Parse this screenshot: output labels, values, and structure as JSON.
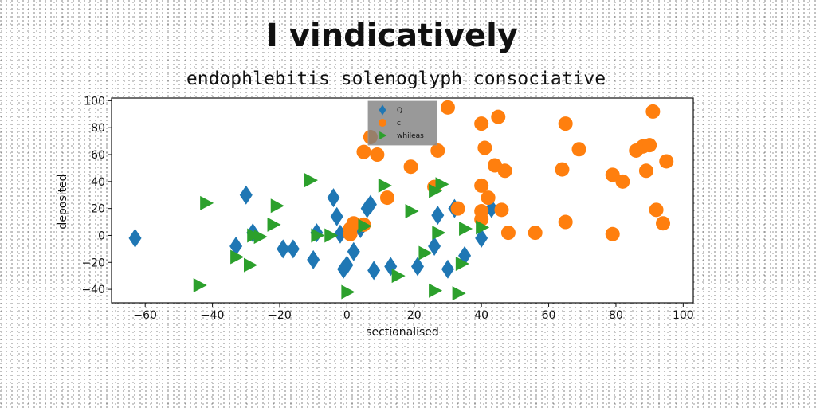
{
  "title": "I vindicatively",
  "subtitle": "endophlebitis solenoglyph consociative",
  "chart_data": {
    "type": "scatter",
    "xlabel": "sectionalised",
    "ylabel": "deposited",
    "xlim": [
      -70,
      103
    ],
    "ylim": [
      -50,
      102
    ],
    "xticks": [
      -60,
      -40,
      -20,
      0,
      20,
      40,
      60,
      80,
      100
    ],
    "yticks": [
      -40,
      -20,
      0,
      20,
      40,
      60,
      80,
      100
    ],
    "xtick_labels": [
      "−60",
      "−40",
      "−20",
      "0",
      "20",
      "40",
      "60",
      "80",
      "100"
    ],
    "ytick_labels": [
      "−40",
      "−20",
      "0",
      "20",
      "40",
      "60",
      "80",
      "100"
    ],
    "grid": false,
    "legend_position": "top-center",
    "series": [
      {
        "name": "Q",
        "marker": "diamond",
        "color": "#1f77b4",
        "points": [
          [
            -63,
            -2
          ],
          [
            -33,
            -8
          ],
          [
            -30,
            30
          ],
          [
            -28,
            2
          ],
          [
            -19,
            -10
          ],
          [
            -16,
            -10
          ],
          [
            -10,
            -18
          ],
          [
            -9,
            2
          ],
          [
            -4,
            28
          ],
          [
            -3,
            14
          ],
          [
            -2,
            1
          ],
          [
            -1,
            -25
          ],
          [
            0,
            -22
          ],
          [
            2,
            -12
          ],
          [
            4,
            5
          ],
          [
            6,
            20
          ],
          [
            7,
            23
          ],
          [
            8,
            -26
          ],
          [
            13,
            -23
          ],
          [
            21,
            -23
          ],
          [
            26,
            -8
          ],
          [
            27,
            15
          ],
          [
            30,
            -25
          ],
          [
            32,
            20
          ],
          [
            35,
            -15
          ],
          [
            40,
            -2
          ],
          [
            43,
            20
          ]
        ]
      },
      {
        "name": "c",
        "marker": "circle",
        "color": "#ff7f0e",
        "points": [
          [
            1,
            1
          ],
          [
            1,
            5
          ],
          [
            2,
            9
          ],
          [
            5,
            8
          ],
          [
            5,
            62
          ],
          [
            7,
            73
          ],
          [
            9,
            60
          ],
          [
            12,
            28
          ],
          [
            19,
            51
          ],
          [
            26,
            36
          ],
          [
            27,
            63
          ],
          [
            30,
            95
          ],
          [
            33,
            20
          ],
          [
            40,
            12
          ],
          [
            40,
            18
          ],
          [
            40,
            37
          ],
          [
            40,
            83
          ],
          [
            41,
            65
          ],
          [
            42,
            28
          ],
          [
            44,
            52
          ],
          [
            45,
            88
          ],
          [
            46,
            19
          ],
          [
            47,
            48
          ],
          [
            48,
            2
          ],
          [
            56,
            2
          ],
          [
            64,
            49
          ],
          [
            65,
            10
          ],
          [
            65,
            83
          ],
          [
            69,
            64
          ],
          [
            79,
            1
          ],
          [
            79,
            45
          ],
          [
            82,
            40
          ],
          [
            86,
            63
          ],
          [
            88,
            66
          ],
          [
            89,
            48
          ],
          [
            90,
            67
          ],
          [
            91,
            92
          ],
          [
            92,
            19
          ],
          [
            94,
            9
          ],
          [
            95,
            55
          ]
        ]
      },
      {
        "name": "whileas",
        "marker": "triangle-right",
        "color": "#2ca02c",
        "points": [
          [
            -44,
            -37
          ],
          [
            -42,
            24
          ],
          [
            -33,
            -16
          ],
          [
            -29,
            -22
          ],
          [
            -28,
            0
          ],
          [
            -26,
            -1
          ],
          [
            -22,
            8
          ],
          [
            -21,
            22
          ],
          [
            -11,
            41
          ],
          [
            -9,
            0
          ],
          [
            -5,
            0
          ],
          [
            0,
            -42
          ],
          [
            5,
            7
          ],
          [
            11,
            37
          ],
          [
            15,
            -30
          ],
          [
            19,
            18
          ],
          [
            23,
            -13
          ],
          [
            26,
            -41
          ],
          [
            26,
            33
          ],
          [
            27,
            2
          ],
          [
            28,
            38
          ],
          [
            33,
            -43
          ],
          [
            34,
            -21
          ],
          [
            35,
            5
          ],
          [
            40,
            6
          ]
        ]
      }
    ]
  }
}
